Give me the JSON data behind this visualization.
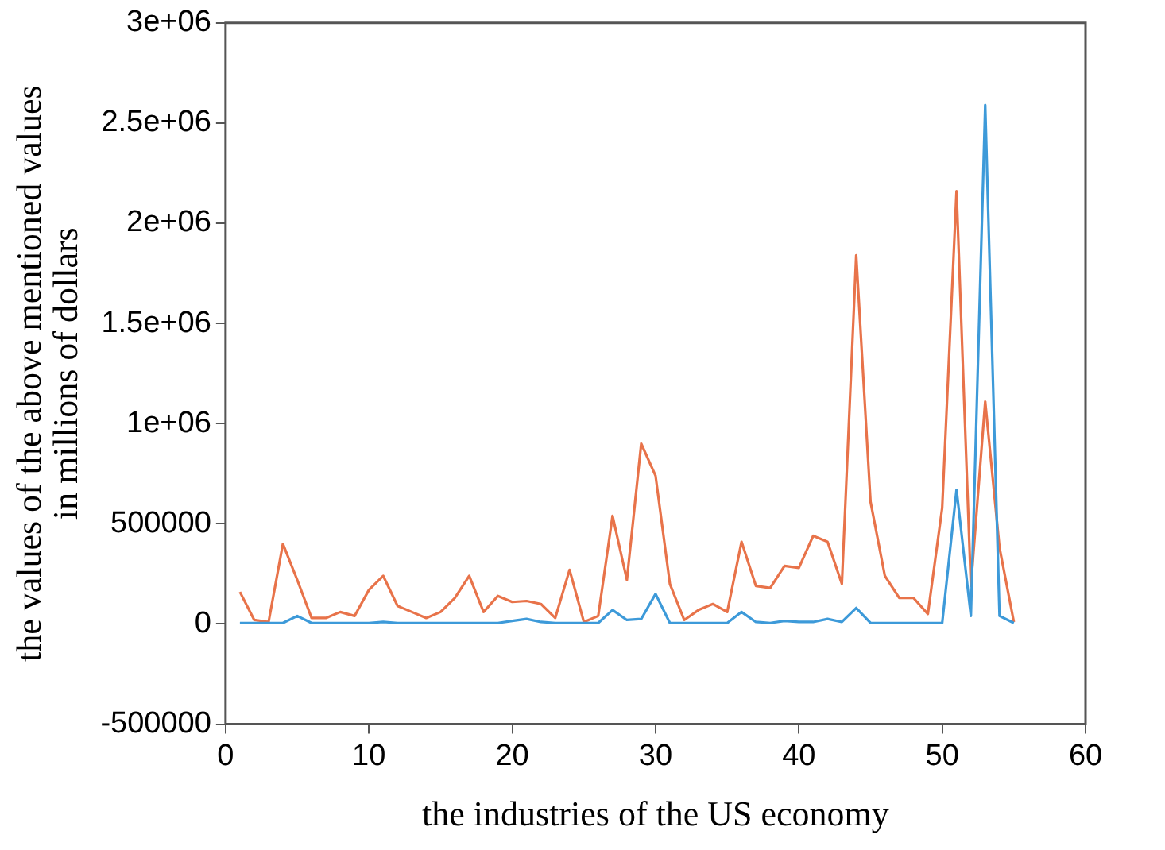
{
  "chart_data": {
    "type": "line",
    "xlabel": "the industries of the US economy",
    "ylabel": "the values of the above mentioned values\nin millions of dollars",
    "x": [
      1,
      2,
      3,
      4,
      5,
      6,
      7,
      8,
      9,
      10,
      11,
      12,
      13,
      14,
      15,
      16,
      17,
      18,
      19,
      20,
      21,
      22,
      23,
      24,
      25,
      26,
      27,
      28,
      29,
      30,
      31,
      32,
      33,
      34,
      35,
      36,
      37,
      38,
      39,
      40,
      41,
      42,
      43,
      44,
      45,
      46,
      47,
      48,
      49,
      50,
      51,
      52,
      53,
      54,
      55
    ],
    "series": [
      {
        "color": "#3d9ad9",
        "values": [
          5000,
          5000,
          5000,
          5000,
          40000,
          5000,
          5000,
          5000,
          5000,
          5000,
          10000,
          5000,
          5000,
          5000,
          5000,
          5000,
          5000,
          5000,
          5000,
          15000,
          25000,
          10000,
          5000,
          5000,
          5000,
          5000,
          70000,
          20000,
          25000,
          150000,
          5000,
          5000,
          5000,
          5000,
          5000,
          60000,
          10000,
          5000,
          15000,
          10000,
          10000,
          25000,
          10000,
          80000,
          5000,
          5000,
          5000,
          5000,
          5000,
          5000,
          670000,
          40000,
          2590000,
          40000,
          5000
        ]
      },
      {
        "color": "#e8734a",
        "values": [
          160000,
          20000,
          10000,
          400000,
          220000,
          30000,
          30000,
          60000,
          40000,
          170000,
          240000,
          90000,
          60000,
          30000,
          60000,
          130000,
          240000,
          60000,
          140000,
          110000,
          115000,
          100000,
          30000,
          270000,
          10000,
          40000,
          540000,
          220000,
          900000,
          740000,
          200000,
          20000,
          70000,
          100000,
          60000,
          410000,
          190000,
          180000,
          290000,
          280000,
          440000,
          410000,
          200000,
          1840000,
          610000,
          240000,
          130000,
          130000,
          50000,
          580000,
          2160000,
          190000,
          1110000,
          380000,
          10000
        ]
      }
    ],
    "xlim": [
      0,
      60
    ],
    "xticks": [
      0,
      10,
      20,
      30,
      40,
      50,
      60
    ],
    "ylim": [
      -500000,
      3000000
    ],
    "yticks": [
      -500000,
      0,
      500000,
      {
        "value": 1000000,
        "label": "1e+06"
      },
      {
        "value": 1500000,
        "label": "1.5e+06"
      },
      {
        "value": 2000000,
        "label": "2e+06"
      },
      {
        "value": 2500000,
        "label": "2.5e+06"
      },
      {
        "value": 3000000,
        "label": "3e+06"
      }
    ],
    "grid": false,
    "legend": false,
    "marker": "none",
    "line_style": "solid"
  }
}
